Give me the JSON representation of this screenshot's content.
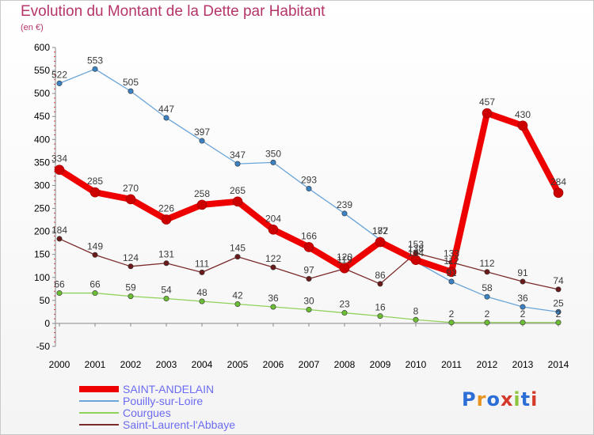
{
  "header": {
    "title": "Evolution du Montant de la Dette par Habitant",
    "unit": "(en €)"
  },
  "logo": {
    "text": "Proxiti",
    "colors": [
      "#2b6fd6",
      "#e8921f",
      "#2b6fd6",
      "#d43a2a",
      "#8cc63f",
      "#2b6fd6",
      "#d43a2a"
    ]
  },
  "chart_data": {
    "type": "line",
    "title": "Evolution du Montant de la Dette par Habitant",
    "ylabel": "(en €)",
    "xlabel": "",
    "ylim": [
      -50,
      600
    ],
    "yticks": [
      -50,
      0,
      50,
      100,
      150,
      200,
      250,
      300,
      350,
      400,
      450,
      500,
      550,
      600
    ],
    "grid": false,
    "legend_position": "bottom-left",
    "x": [
      "2000",
      "2001",
      "2002",
      "2003",
      "2004",
      "2005",
      "2006",
      "2007",
      "2008",
      "2009",
      "2010",
      "2011",
      "2012",
      "2013",
      "2014"
    ],
    "series": [
      {
        "name": "SAINT-ANDELAIN",
        "color": "#ee0000",
        "marker": "#cc0000",
        "width": 8,
        "values": [
          334,
          285,
          270,
          226,
          258,
          265,
          204,
          166,
          120,
          177,
          138,
          112,
          457,
          430,
          284
        ]
      },
      {
        "name": "Pouilly-sur-Loire",
        "color": "#6aa4d8",
        "marker": "#3b82c4",
        "width": 1.3,
        "values": [
          522,
          553,
          505,
          447,
          397,
          347,
          350,
          293,
          239,
          182,
          134,
          91,
          58,
          36,
          25
        ]
      },
      {
        "name": "Courgues",
        "color": "#8fd25a",
        "marker": "#6cbf35",
        "width": 1.3,
        "values": [
          66,
          66,
          59,
          54,
          48,
          42,
          36,
          30,
          23,
          16,
          8,
          2,
          2,
          2,
          2
        ]
      },
      {
        "name": "Saint-Laurent-l'Abbaye",
        "color": "#7a2a2a",
        "marker": "#6a1a1a",
        "width": 1.3,
        "values": [
          184,
          149,
          124,
          131,
          111,
          145,
          122,
          97,
          119,
          86,
          153,
          133,
          112,
          91,
          74
        ]
      }
    ]
  }
}
